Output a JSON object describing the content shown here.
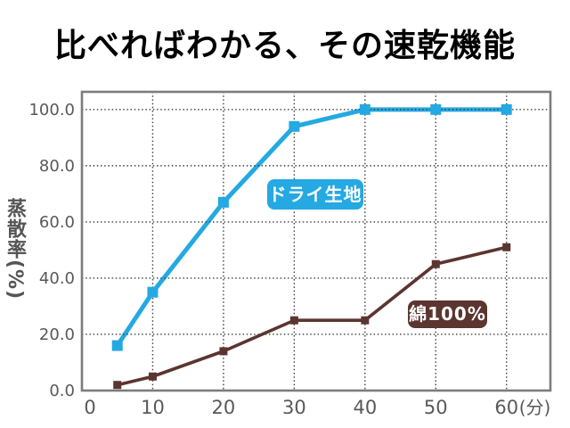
{
  "chart_data": {
    "type": "line",
    "title": "比べればわかる、その速乾機能",
    "ylabel": "蒸散率(%)",
    "xlabel": "(分)",
    "x_unit_label": "(分)",
    "grid": true,
    "xlim": [
      0,
      66.2
    ],
    "ylim": [
      0,
      106.3
    ],
    "xticks": [
      {
        "value": 0,
        "label": "0",
        "dx": 9
      },
      {
        "value": 10,
        "label": "10",
        "dx": 0
      },
      {
        "value": 20,
        "label": "20",
        "dx": 0
      },
      {
        "value": 30,
        "label": "30",
        "dx": 0
      },
      {
        "value": 40,
        "label": "40",
        "dx": 0
      },
      {
        "value": 50,
        "label": "50",
        "dx": 0
      },
      {
        "value": 60,
        "label": "60",
        "dx": 0
      }
    ],
    "yticks": [
      {
        "value": 0,
        "label": "0.0"
      },
      {
        "value": 20,
        "label": "20.0"
      },
      {
        "value": 40,
        "label": "40.0"
      },
      {
        "value": 60,
        "label": "60.0"
      },
      {
        "value": 80,
        "label": "80.0"
      },
      {
        "value": 100,
        "label": "100.0"
      }
    ],
    "series": [
      {
        "name": "ドライ生地",
        "color": "#24a9e2",
        "line_width": 5,
        "marker_size": 12,
        "x": [
          5,
          10,
          20,
          30,
          40,
          50,
          60
        ],
        "values": [
          16,
          35,
          67,
          94,
          100,
          100,
          100
        ]
      },
      {
        "name": "綿100%",
        "color": "#5b352f",
        "line_width": 3.6,
        "marker_size": 9,
        "x": [
          5,
          10,
          20,
          30,
          40,
          50,
          60
        ],
        "values": [
          2,
          5,
          14,
          25,
          25,
          45,
          51
        ]
      }
    ],
    "layout": {
      "plot": {
        "l": 92,
        "t": 103,
        "r": 618,
        "b": 438
      },
      "border_color": "#7c7c7c",
      "tick_color": "#595959"
    }
  }
}
